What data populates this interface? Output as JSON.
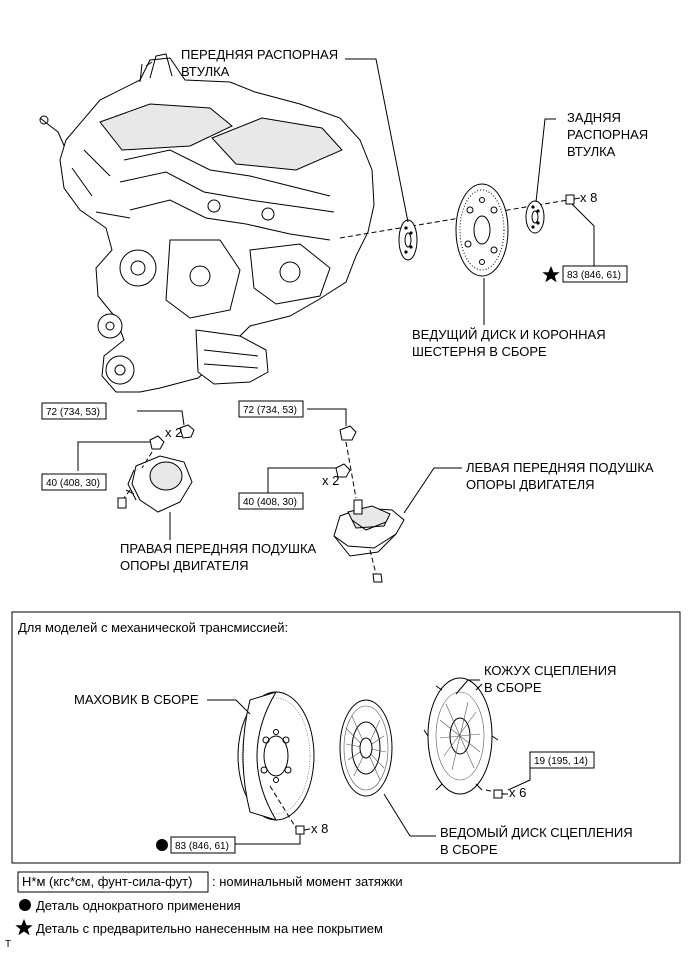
{
  "labels": {
    "front_spacer": [
      "ПЕРЕДНЯЯ РАСПОРНАЯ",
      "ВТУЛКА"
    ],
    "rear_spacer": [
      "ЗАДНЯЯ",
      "РАСПОРНАЯ",
      "ВТУЛКА"
    ],
    "drive_plate": [
      "ВЕДУЩИЙ ДИСК И КОРОННАЯ",
      "ШЕСТЕРНЯ В СБОРЕ"
    ],
    "right_mount": [
      "ПРАВАЯ ПЕРЕДНЯЯ ПОДУШКА",
      "ОПОРЫ ДВИГАТЕЛЯ"
    ],
    "left_mount": [
      "ЛЕВАЯ ПЕРЕДНЯЯ ПОДУШКА",
      "ОПОРЫ ДВИГАТЕЛЯ"
    ],
    "flywheel": "МАХОВИК В СБОРЕ",
    "clutch_cover": [
      "КОЖУХ СЦЕПЛЕНИЯ",
      "В СБОРЕ"
    ],
    "clutch_disc": [
      "ВЕДОМЫЙ ДИСК СЦЕПЛЕНИЯ",
      "В СБОРЕ"
    ]
  },
  "quantities": {
    "drive_plate_bolts": "x 8",
    "right_mount_nuts": "x 2",
    "left_mount_nuts": "x 2",
    "flywheel_bolts": "x 8",
    "clutch_cover_bolts": "x 6"
  },
  "torques": {
    "drive_plate": "83 (846, 61)",
    "right_mount_upper": "72 (734, 53)",
    "right_mount_lower": "40 (408, 30)",
    "left_mount_upper": "72 (734, 53)",
    "left_mount_lower": "40 (408, 30)",
    "clutch_cover": "19 (195, 14)",
    "flywheel": "83 (846, 61)"
  },
  "manual_section_title": "Для моделей с механической трансмиссией:",
  "legend": {
    "torque_unit": "Н*м (кгс*см, фунт-сила-фут)",
    "torque_desc": ": номинальный момент затяжки",
    "non_reusable": "Деталь однократного применения",
    "precoated": "Деталь с предварительно нанесенным на нее покрытием"
  },
  "corner_mark": "T"
}
